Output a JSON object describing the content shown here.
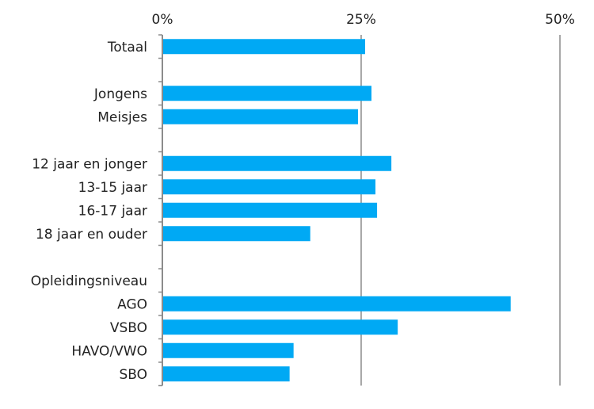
{
  "chart_data": {
    "type": "bar",
    "orientation": "horizontal",
    "title": "",
    "xlabel": "",
    "ylabel": "",
    "xlim": [
      0,
      50
    ],
    "x_ticks": [
      {
        "value": 0,
        "label": "0%"
      },
      {
        "value": 25,
        "label": "25%"
      },
      {
        "value": 50,
        "label": "50%"
      }
    ],
    "x_axis_position": "top",
    "grid": true,
    "color": "#00A9F4",
    "categories": [
      {
        "label": "Totaal",
        "value": 25.5
      },
      {
        "label": "",
        "value": null
      },
      {
        "label": "Jongens",
        "value": 26.3
      },
      {
        "label": "Meisjes",
        "value": 24.6
      },
      {
        "label": "",
        "value": null
      },
      {
        "label": "12 jaar en jonger",
        "value": 28.8
      },
      {
        "label": "13-15 jaar",
        "value": 26.8
      },
      {
        "label": "16-17 jaar",
        "value": 27.0
      },
      {
        "label": "18 jaar en ouder",
        "value": 18.6
      },
      {
        "label": "",
        "value": null
      },
      {
        "label": "Opleidingsniveau",
        "value": null
      },
      {
        "label": "AGO",
        "value": 43.8
      },
      {
        "label": "VSBO",
        "value": 29.6
      },
      {
        "label": "HAVO/VWO",
        "value": 16.5
      },
      {
        "label": "SBO",
        "value": 16.0
      }
    ]
  }
}
